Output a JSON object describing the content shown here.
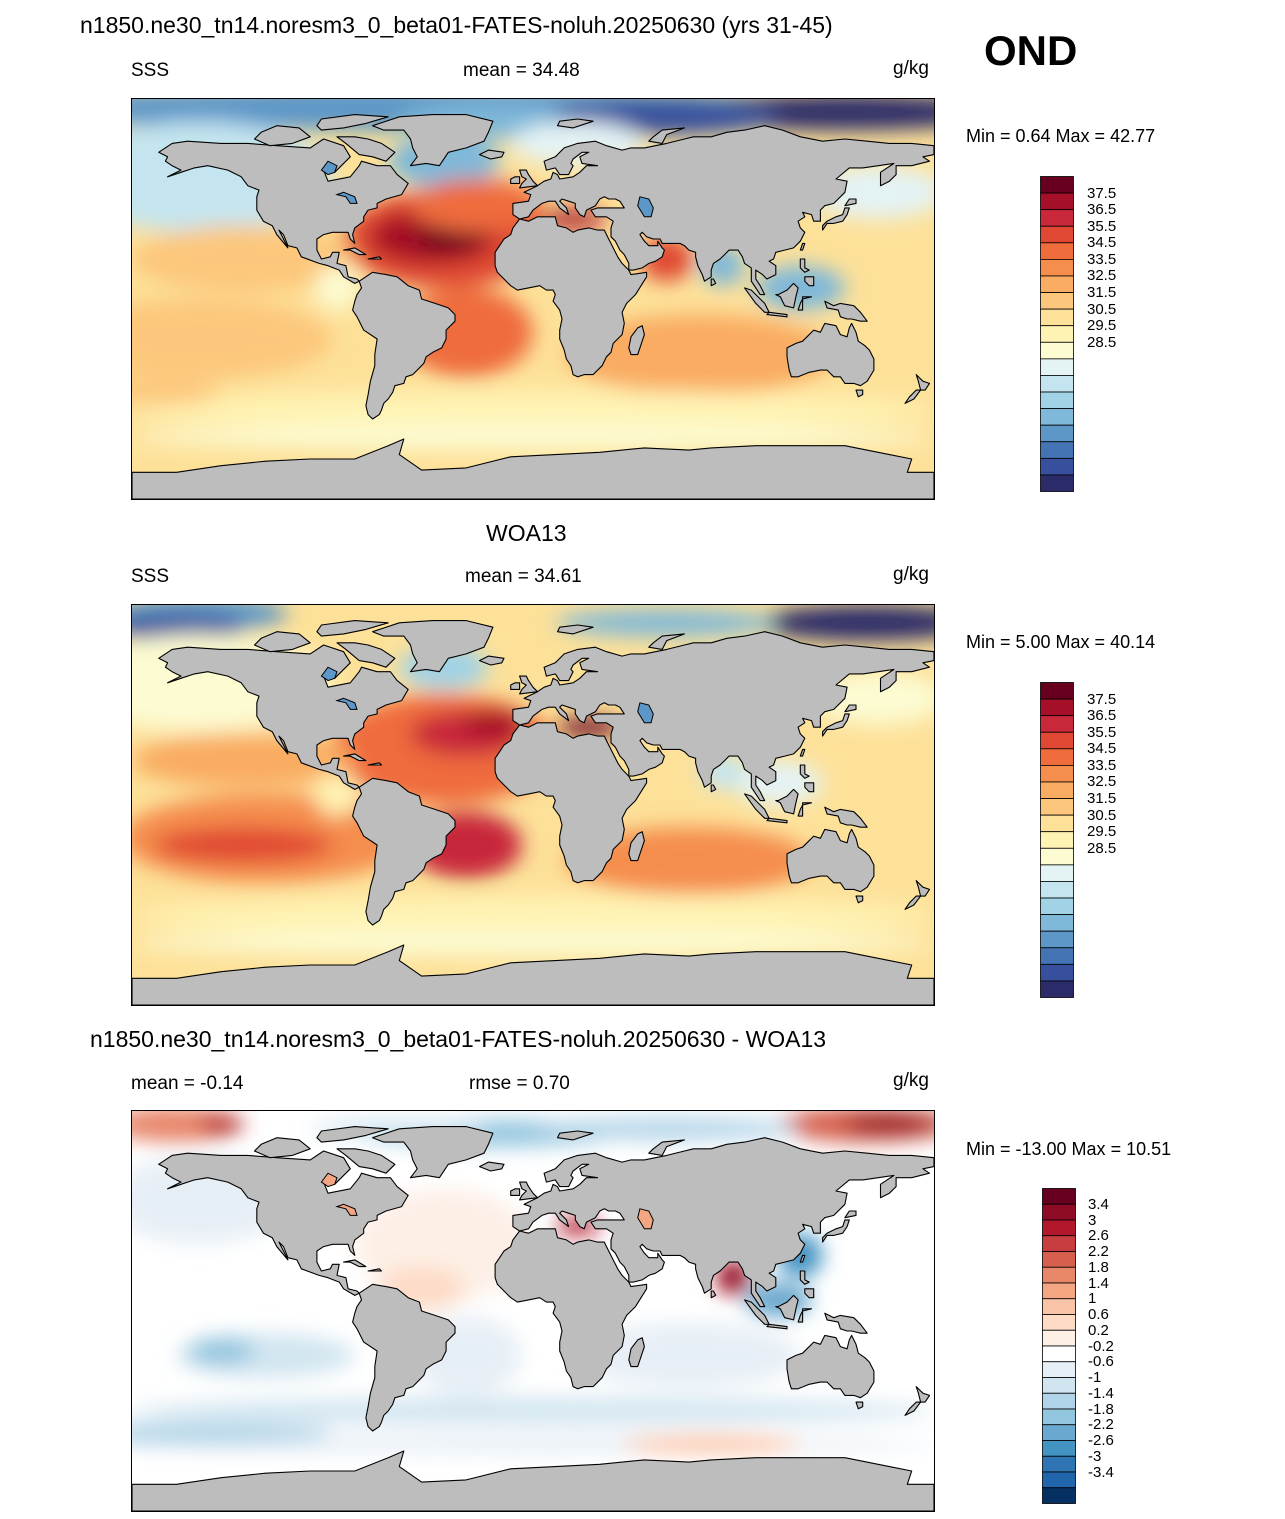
{
  "header": {
    "title": "n1850.ne30_tn14.noresm3_0_beta01-FATES-noluh.20250630 (yrs 31-45)",
    "season": "OND"
  },
  "panels": [
    {
      "id": "model",
      "title": "",
      "left_label": "SSS",
      "center_label": "mean =  34.48",
      "units": "g/kg",
      "minmax": "Min =   0.64 Max =  42.77"
    },
    {
      "id": "obs",
      "title": "WOA13",
      "left_label": "SSS",
      "center_label": "mean =  34.61",
      "units": "g/kg",
      "minmax": "Min =   5.00 Max =  40.14"
    },
    {
      "id": "diff",
      "title": "n1850.ne30_tn14.noresm3_0_beta01-FATES-noluh.20250630 - WOA13",
      "left_label": "mean =  -0.14",
      "center_label": "rmse =   0.70",
      "units": "g/kg",
      "minmax": "Min = -13.00 Max =  10.51"
    }
  ],
  "colorbar_abs": {
    "labels": [
      "37.5",
      "36.5",
      "35.5",
      "34.5",
      "33.5",
      "32.5",
      "31.5",
      "30.5",
      "29.5",
      "28.5"
    ],
    "colors": [
      "#67001f",
      "#a50f28",
      "#c8283a",
      "#e04833",
      "#ef6c3c",
      "#f58d4d",
      "#f9ac62",
      "#fcc77c",
      "#fde199",
      "#fff3b3",
      "#fcfbd2",
      "#e4f3f4",
      "#c4e5ef",
      "#a1d2e6",
      "#7fb8d9",
      "#5d97c8",
      "#4474b4",
      "#374f9c",
      "#2a2b68"
    ]
  },
  "colorbar_diff": {
    "labels": [
      "3.4",
      "3",
      "2.6",
      "2.2",
      "1.8",
      "1.4",
      "1",
      "0.6",
      "0.2",
      "-0.2",
      "-0.6",
      "-1",
      "-1.4",
      "-1.8",
      "-2.2",
      "-2.6",
      "-3",
      "-3.4"
    ],
    "colors": [
      "#67001f",
      "#8e0c25",
      "#b2182b",
      "#c83d3f",
      "#d6604d",
      "#e8866a",
      "#f4a582",
      "#f9c4a8",
      "#fddbc7",
      "#fdefe6",
      "#ffffff",
      "#e7eff6",
      "#d1e5f0",
      "#b2d4e8",
      "#92c5de",
      "#6aa8cf",
      "#4393c3",
      "#2f74b3",
      "#2166ac",
      "#053061"
    ]
  },
  "map_colors": {
    "land": "#bdbdbd",
    "coast": "#000000"
  }
}
